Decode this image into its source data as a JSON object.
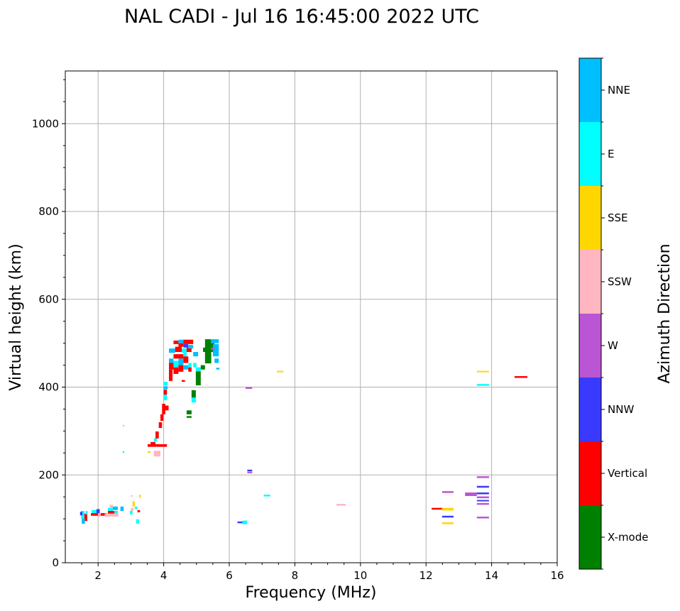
{
  "chart_data": {
    "type": "scatter",
    "title": "NAL CADI - Jul 16 16:45:00 2022 UTC",
    "xlabel": "Frequency (MHz)",
    "ylabel": "Virtual height (km)",
    "xlim": [
      1,
      16
    ],
    "ylim": [
      0,
      1120
    ],
    "xticks": [
      "2",
      "4",
      "6",
      "8",
      "10",
      "12",
      "14",
      "16"
    ],
    "xtick_values": [
      2,
      4,
      6,
      8,
      10,
      12,
      14,
      16
    ],
    "yticks": [
      "0",
      "200",
      "400",
      "600",
      "800",
      "1000"
    ],
    "ytick_values": [
      0,
      200,
      400,
      600,
      800,
      1000
    ],
    "grid": true,
    "colorbar": {
      "label": "Azimuth Direction",
      "categories": [
        "X-mode",
        "Vertical",
        "NNW",
        "W",
        "SSW",
        "SSE",
        "E",
        "NNE"
      ],
      "colors": [
        "#008000",
        "#ff0000",
        "#3a3aff",
        "#ba55d3",
        "#ffb6c1",
        "#ffd700",
        "#00ffff",
        "#00bfff"
      ]
    },
    "echo_fields": [
      "freq_start_mhz",
      "freq_end_mhz",
      "height_min_km",
      "height_max_km",
      "category_index"
    ],
    "echoes": [
      [
        1.48,
        1.58,
        100,
        118,
        6
      ],
      [
        1.58,
        1.67,
        95,
        112,
        1
      ],
      [
        1.5,
        1.6,
        89,
        100,
        7
      ],
      [
        1.45,
        1.52,
        108,
        116,
        2
      ],
      [
        1.62,
        1.68,
        110,
        118,
        6
      ],
      [
        1.78,
        2.26,
        107,
        113,
        1
      ],
      [
        1.8,
        1.95,
        113,
        120,
        6
      ],
      [
        1.95,
        2.05,
        113,
        122,
        2
      ],
      [
        2.0,
        2.08,
        105,
        113,
        4
      ],
      [
        2.2,
        2.62,
        105,
        112,
        4
      ],
      [
        2.3,
        2.5,
        112,
        118,
        1
      ],
      [
        2.3,
        2.45,
        118,
        125,
        6
      ],
      [
        2.45,
        2.6,
        120,
        128,
        7
      ],
      [
        2.35,
        2.45,
        125,
        132,
        4
      ],
      [
        2.5,
        2.6,
        112,
        118,
        6
      ],
      [
        2.68,
        2.78,
        118,
        128,
        7
      ],
      [
        2.97,
        3.05,
        110,
        118,
        6
      ],
      [
        3.0,
        3.08,
        118,
        125,
        4
      ],
      [
        3.05,
        3.12,
        128,
        140,
        5
      ],
      [
        3.12,
        3.2,
        122,
        128,
        6
      ],
      [
        3.2,
        3.28,
        115,
        120,
        1
      ],
      [
        3.16,
        3.25,
        89,
        99,
        6
      ],
      [
        3.25,
        3.3,
        148,
        155,
        5
      ],
      [
        3.0,
        3.05,
        150,
        154,
        4
      ],
      [
        2.75,
        2.8,
        310,
        314,
        4
      ],
      [
        2.75,
        2.8,
        250,
        254,
        6
      ],
      [
        3.51,
        4.1,
        264,
        270,
        1
      ],
      [
        3.7,
        3.9,
        242,
        255,
        4
      ],
      [
        3.51,
        3.6,
        250,
        254,
        5
      ],
      [
        3.6,
        3.75,
        268,
        275,
        1
      ],
      [
        3.7,
        3.8,
        276,
        283,
        6
      ],
      [
        3.75,
        3.85,
        283,
        299,
        1
      ],
      [
        3.85,
        3.95,
        307,
        320,
        1
      ],
      [
        3.9,
        3.99,
        323,
        338,
        1
      ],
      [
        3.95,
        4.05,
        338,
        362,
        1
      ],
      [
        4.0,
        4.15,
        347,
        358,
        1
      ],
      [
        4.0,
        4.1,
        370,
        383,
        6
      ],
      [
        4.0,
        4.1,
        383,
        394,
        1
      ],
      [
        4.0,
        4.12,
        395,
        402,
        7
      ],
      [
        4.0,
        4.12,
        404,
        412,
        6
      ],
      [
        4.16,
        4.27,
        414,
        440,
        1
      ],
      [
        4.16,
        4.3,
        440,
        455,
        1
      ],
      [
        4.16,
        4.3,
        455,
        465,
        7
      ],
      [
        4.3,
        4.45,
        430,
        445,
        1
      ],
      [
        4.3,
        4.45,
        445,
        460,
        6
      ],
      [
        4.45,
        4.6,
        435,
        450,
        1
      ],
      [
        4.45,
        4.6,
        450,
        465,
        7
      ],
      [
        4.3,
        4.6,
        465,
        475,
        1
      ],
      [
        4.6,
        4.75,
        440,
        450,
        7
      ],
      [
        4.6,
        4.75,
        455,
        470,
        1
      ],
      [
        4.75,
        4.85,
        435,
        445,
        1
      ],
      [
        4.75,
        4.85,
        445,
        455,
        6
      ],
      [
        4.6,
        4.7,
        470,
        480,
        6
      ],
      [
        4.16,
        4.35,
        478,
        488,
        7
      ],
      [
        4.35,
        4.55,
        480,
        492,
        1
      ],
      [
        4.55,
        4.7,
        478,
        488,
        6
      ],
      [
        4.7,
        4.85,
        480,
        490,
        1
      ],
      [
        4.45,
        4.6,
        492,
        500,
        1
      ],
      [
        4.6,
        4.75,
        490,
        498,
        2
      ],
      [
        4.75,
        4.9,
        488,
        496,
        7
      ],
      [
        4.3,
        4.45,
        498,
        506,
        1
      ],
      [
        4.45,
        4.6,
        500,
        508,
        7
      ],
      [
        4.6,
        4.9,
        498,
        508,
        1
      ],
      [
        4.9,
        5.05,
        470,
        480,
        7
      ],
      [
        4.9,
        5.0,
        445,
        455,
        6
      ],
      [
        4.55,
        4.65,
        412,
        416,
        1
      ],
      [
        4.98,
        5.13,
        404,
        436,
        0
      ],
      [
        4.98,
        5.13,
        436,
        445,
        6
      ],
      [
        5.13,
        5.26,
        440,
        450,
        0
      ],
      [
        4.85,
        4.98,
        376,
        393,
        0
      ],
      [
        4.85,
        4.98,
        365,
        376,
        6
      ],
      [
        4.7,
        4.85,
        338,
        347,
        0
      ],
      [
        4.7,
        4.85,
        330,
        334,
        0
      ],
      [
        5.26,
        5.45,
        454,
        509,
        0
      ],
      [
        5.45,
        5.55,
        480,
        500,
        0
      ],
      [
        5.2,
        5.3,
        480,
        490,
        0
      ],
      [
        5.44,
        5.68,
        500,
        509,
        7
      ],
      [
        5.5,
        5.68,
        470,
        498,
        7
      ],
      [
        5.55,
        5.68,
        455,
        465,
        7
      ],
      [
        5.45,
        5.55,
        485,
        490,
        3
      ],
      [
        5.6,
        5.7,
        440,
        444,
        7
      ],
      [
        6.5,
        6.7,
        396,
        400,
        3
      ],
      [
        6.55,
        6.7,
        208,
        212,
        2
      ],
      [
        6.55,
        6.7,
        204,
        207,
        3
      ],
      [
        6.25,
        6.4,
        90,
        94,
        2
      ],
      [
        6.4,
        6.55,
        88,
        96,
        6
      ],
      [
        7.05,
        7.25,
        151,
        155,
        6
      ],
      [
        7.45,
        7.65,
        434,
        437,
        5
      ],
      [
        9.27,
        9.55,
        130,
        134,
        4
      ],
      [
        12.17,
        12.49,
        121,
        125,
        1
      ],
      [
        12.49,
        12.84,
        119,
        125,
        5
      ],
      [
        12.49,
        12.84,
        103,
        107,
        2
      ],
      [
        12.49,
        12.84,
        88,
        92,
        5
      ],
      [
        12.49,
        12.84,
        159,
        163,
        3
      ],
      [
        13.19,
        13.55,
        152,
        160,
        3
      ],
      [
        13.55,
        13.92,
        193,
        197,
        3
      ],
      [
        13.55,
        13.92,
        171,
        175,
        2
      ],
      [
        13.55,
        13.92,
        156,
        160,
        2
      ],
      [
        13.55,
        13.92,
        147,
        151,
        3
      ],
      [
        13.55,
        13.92,
        140,
        143,
        2
      ],
      [
        13.55,
        13.92,
        132,
        136,
        3
      ],
      [
        13.55,
        13.92,
        101,
        105,
        3
      ],
      [
        13.55,
        13.92,
        403,
        407,
        6
      ],
      [
        13.55,
        13.92,
        434,
        437,
        5
      ],
      [
        14.7,
        15.09,
        421,
        425,
        1
      ]
    ]
  }
}
